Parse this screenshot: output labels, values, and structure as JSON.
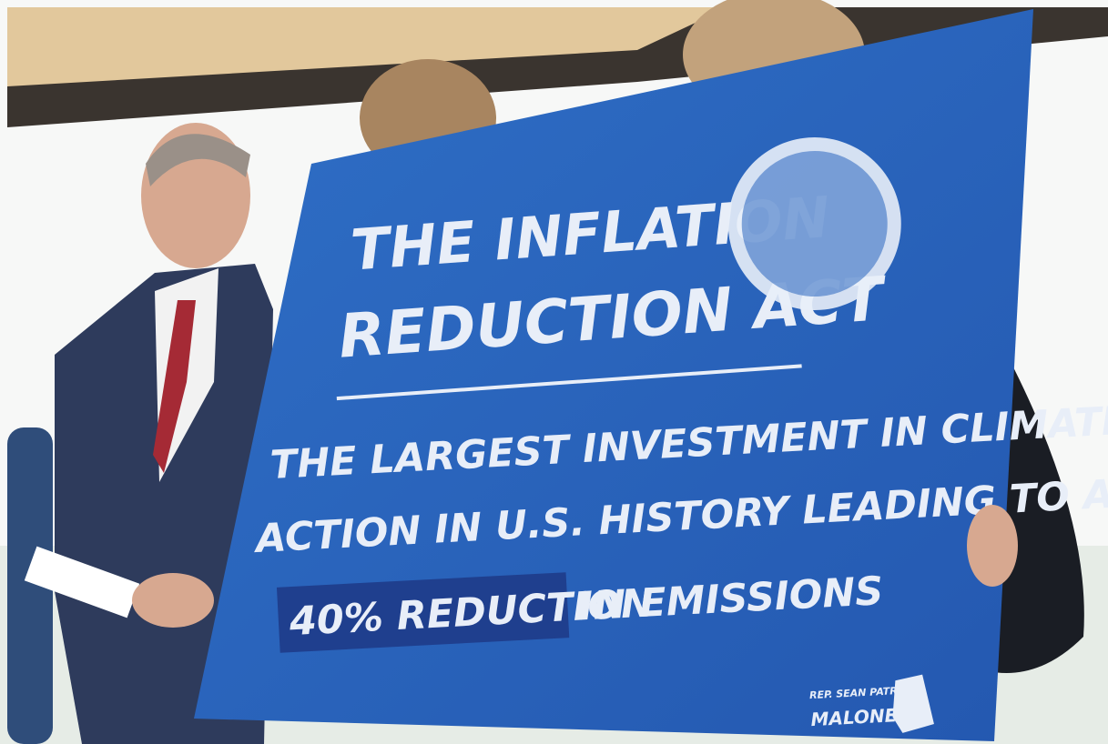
{
  "sign": {
    "title": [
      "THE INFLATION",
      "REDUCTION ACT"
    ],
    "body": [
      "THE LARGEST INVESTMENT IN CLIMATE",
      "ACTION IN U.S. HISTORY LEADING TO A"
    ],
    "highlight": "40% REDUCTION",
    "highlight_rest": "IN EMISSIONS",
    "logo": [
      "REP. SEAN PATRICK",
      "MALONEY"
    ]
  }
}
